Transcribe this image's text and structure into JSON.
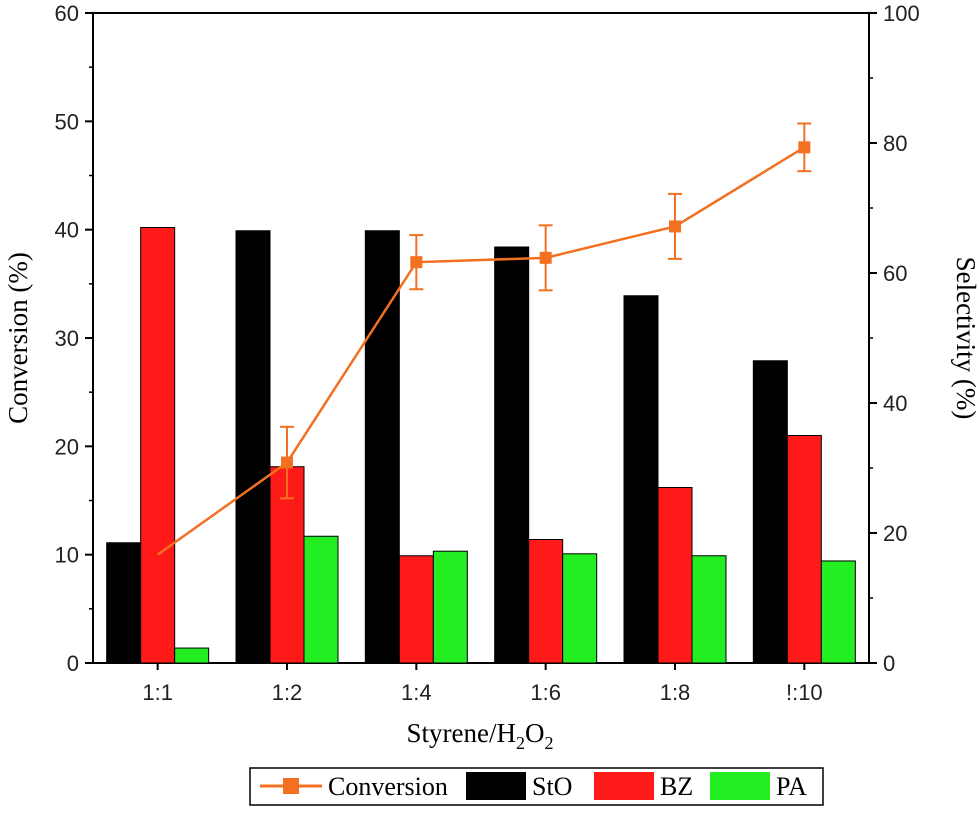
{
  "chart_data": {
    "type": "bar",
    "categories": [
      "1:1",
      "1:2",
      "1:4",
      "1:6",
      "1:8",
      "!:10"
    ],
    "xlabel": {
      "base": "Styrene/H",
      "sub1": "2",
      "mid": "O",
      "sub2": "2"
    },
    "ylabel_left": "Conversion (%)",
    "ylabel_right": "Selectivity (%)",
    "ylim_left": [
      0,
      60
    ],
    "ylim_right": [
      0,
      100
    ],
    "yticks_left": [
      "0",
      "10",
      "20",
      "30",
      "40",
      "50",
      "60"
    ],
    "yticks_right": [
      "0",
      "20",
      "40",
      "60",
      "80",
      "100"
    ],
    "grid": false,
    "legend_position": "bottom",
    "series": [
      {
        "name": "StO",
        "axis": "right",
        "color": "#000000",
        "values": [
          18.5,
          66.5,
          66.5,
          64.0,
          56.5,
          46.5
        ]
      },
      {
        "name": "BZ",
        "axis": "right",
        "color": "#ff1a1a",
        "values": [
          67.0,
          30.2,
          16.5,
          19.0,
          27.0,
          35.0
        ]
      },
      {
        "name": "PA",
        "axis": "right",
        "color": "#22ee22",
        "values": [
          2.3,
          19.5,
          17.2,
          16.8,
          16.5,
          15.7
        ]
      }
    ],
    "line_series": {
      "name": "Conversion",
      "axis": "left",
      "color": "#f37021",
      "values": [
        10.0,
        18.5,
        37.0,
        37.4,
        40.3,
        47.6
      ],
      "errors": [
        null,
        3.3,
        2.5,
        3.0,
        3.0,
        2.2
      ]
    }
  }
}
